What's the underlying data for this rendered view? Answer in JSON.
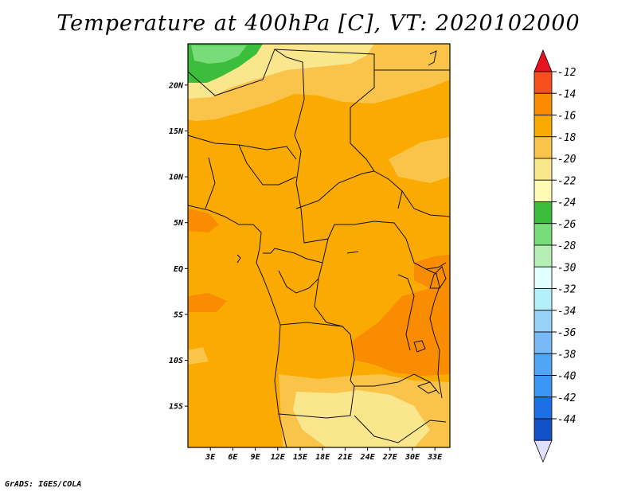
{
  "title": "Temperature at 400hPa [C], VT: 2020102000",
  "credit": "GrADS: IGES/COLA",
  "map": {
    "lat_range": [
      -19.5,
      24.5
    ],
    "lon_range": [
      0,
      35
    ],
    "lat_labels": [
      {
        "lat": 20,
        "label": "20N"
      },
      {
        "lat": 15,
        "label": "15N"
      },
      {
        "lat": 10,
        "label": "10N"
      },
      {
        "lat": 5,
        "label": "5N"
      },
      {
        "lat": 0,
        "label": "EQ"
      },
      {
        "lat": -5,
        "label": "5S"
      },
      {
        "lat": -10,
        "label": "10S"
      },
      {
        "lat": -15,
        "label": "15S"
      }
    ],
    "lon_labels": [
      {
        "lon": 3,
        "label": "3E"
      },
      {
        "lon": 6,
        "label": "6E"
      },
      {
        "lon": 9,
        "label": "9E"
      },
      {
        "lon": 12,
        "label": "12E"
      },
      {
        "lon": 15,
        "label": "15E"
      },
      {
        "lon": 18,
        "label": "18E"
      },
      {
        "lon": 21,
        "label": "21E"
      },
      {
        "lon": 24,
        "label": "24E"
      },
      {
        "lon": 27,
        "label": "27E"
      },
      {
        "lon": 30,
        "label": "30E"
      },
      {
        "lon": 33,
        "label": "33E"
      }
    ]
  },
  "colorbar": {
    "levels": [
      "-12",
      "-14",
      "-16",
      "-18",
      "-20",
      "-22",
      "-24",
      "-26",
      "-28",
      "-30",
      "-32",
      "-34",
      "-36",
      "-38",
      "-40",
      "-42",
      "-44"
    ],
    "colors": [
      "#f6501e",
      "#fa8c02",
      "#faaa00",
      "#fac44b",
      "#fae68c",
      "#fffab4",
      "#3cbe3c",
      "#78dc78",
      "#b4f0b4",
      "#e1ffff",
      "#b4f0fa",
      "#96d2fa",
      "#78b9fa",
      "#50a5f5",
      "#3c96f5",
      "#1e6ee6",
      "#1450c8",
      "#0a1e78"
    ],
    "top_triangle_color": "#e6141e",
    "bottom_triangle_color": "#e1e1ff"
  }
}
